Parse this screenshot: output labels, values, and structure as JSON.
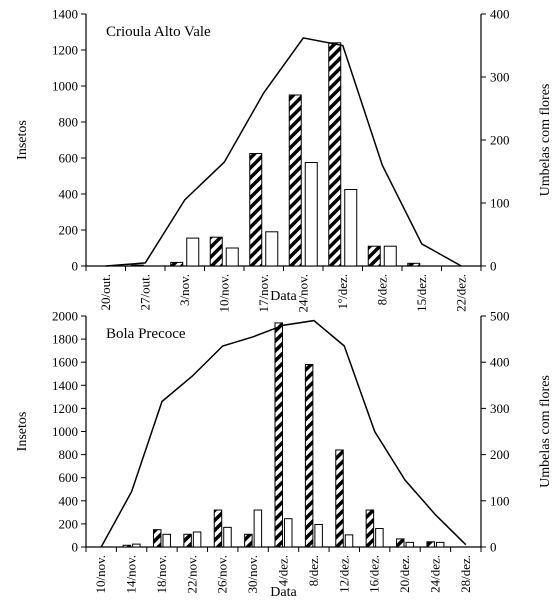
{
  "chart_data": [
    {
      "type": "bar",
      "title": "Crioula Alto Vale",
      "xlabel": "Data",
      "ylabel": "Insetos",
      "y2label": "Umbelas com flores",
      "categories": [
        "20/out.",
        "27/out.",
        "3/nov.",
        "10/nov.",
        "17/nov.",
        "24/nov.",
        "1º/dez.",
        "8/dez.",
        "15/dez.",
        "22/dez."
      ],
      "ylim": [
        0,
        1400
      ],
      "yticks": [
        "0",
        "200",
        "400",
        "600",
        "800",
        "1000",
        "1200",
        "1400"
      ],
      "y2lim": [
        0,
        400
      ],
      "y2ticks": [
        "0",
        "100",
        "200",
        "300",
        "400"
      ],
      "series": [
        {
          "axis": "left",
          "style": "hatched",
          "values": [
            0,
            5,
            20,
            160,
            625,
            950,
            1240,
            110,
            15,
            0
          ]
        },
        {
          "axis": "left",
          "style": "open",
          "values": [
            0,
            0,
            155,
            100,
            190,
            575,
            425,
            110,
            0,
            0
          ]
        },
        {
          "axis": "right",
          "style": "line",
          "values": [
            0,
            5,
            105,
            165,
            275,
            362,
            350,
            160,
            35,
            0
          ]
        }
      ]
    },
    {
      "type": "bar",
      "title": "Bola Precoce",
      "xlabel": "Data",
      "ylabel": "Insetos",
      "y2label": "Umbelas com flores",
      "categories": [
        "10/nov.",
        "14/nov.",
        "18/nov.",
        "22/nov.",
        "26/nov.",
        "30/nov.",
        "4/dez.",
        "8/dez.",
        "12/dez.",
        "16/dez.",
        "20/dez.",
        "24/dez.",
        "28/dez."
      ],
      "ylim": [
        0,
        2000
      ],
      "yticks": [
        "0",
        "200",
        "400",
        "600",
        "800",
        "1000",
        "1200",
        "1400",
        "1600",
        "1800",
        "2000"
      ],
      "y2lim": [
        0,
        500
      ],
      "y2ticks": [
        "0",
        "100",
        "200",
        "300",
        "400",
        "500"
      ],
      "series": [
        {
          "axis": "left",
          "style": "hatched",
          "values": [
            0,
            15,
            150,
            110,
            320,
            110,
            1940,
            1580,
            840,
            320,
            70,
            45,
            0
          ]
        },
        {
          "axis": "left",
          "style": "open",
          "values": [
            0,
            25,
            110,
            130,
            170,
            320,
            245,
            195,
            105,
            160,
            40,
            40,
            0
          ]
        },
        {
          "axis": "right",
          "style": "line",
          "values": [
            0,
            120,
            315,
            370,
            435,
            455,
            480,
            490,
            435,
            250,
            145,
            70,
            5
          ]
        }
      ]
    }
  ]
}
